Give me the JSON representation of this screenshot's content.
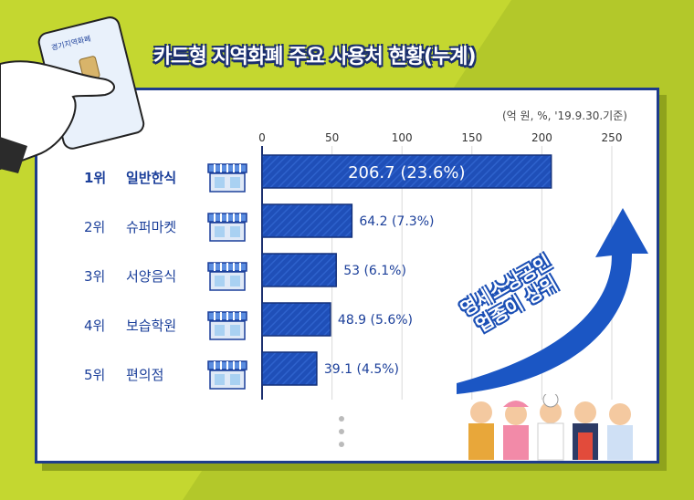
{
  "title": "카드형 지역화폐 주요 사용처 현황(누계)",
  "unit_note": "(억 원, %, '19.9.30.기준)",
  "card_brand": "경기지역화폐",
  "callout": [
    "영세소상공인",
    "업종이 상위"
  ],
  "chart_data": {
    "type": "bar",
    "orientation": "horizontal",
    "categories": [
      "일반한식",
      "슈퍼마켓",
      "서양음식",
      "보습학원",
      "편의점"
    ],
    "ranks": [
      "1위",
      "2위",
      "3위",
      "4위",
      "5위"
    ],
    "values": [
      206.7,
      64.2,
      53,
      48.9,
      39.1
    ],
    "percents": [
      23.6,
      7.3,
      6.1,
      5.6,
      4.5
    ],
    "data_labels": [
      "206.7 (23.6%)",
      "64.2 (7.3%)",
      "53 (6.1%)",
      "48.9 (5.6%)",
      "39.1 (4.5%)"
    ],
    "x_ticks": [
      "0",
      "50",
      "100",
      "150",
      "200",
      "250"
    ],
    "xlim": [
      0,
      250
    ],
    "grid": true,
    "bar_color": "#1f4fb8"
  },
  "colors": {
    "background": "#c4d730",
    "frame": "#1e3c8c",
    "accent": "#1b3f9a"
  }
}
